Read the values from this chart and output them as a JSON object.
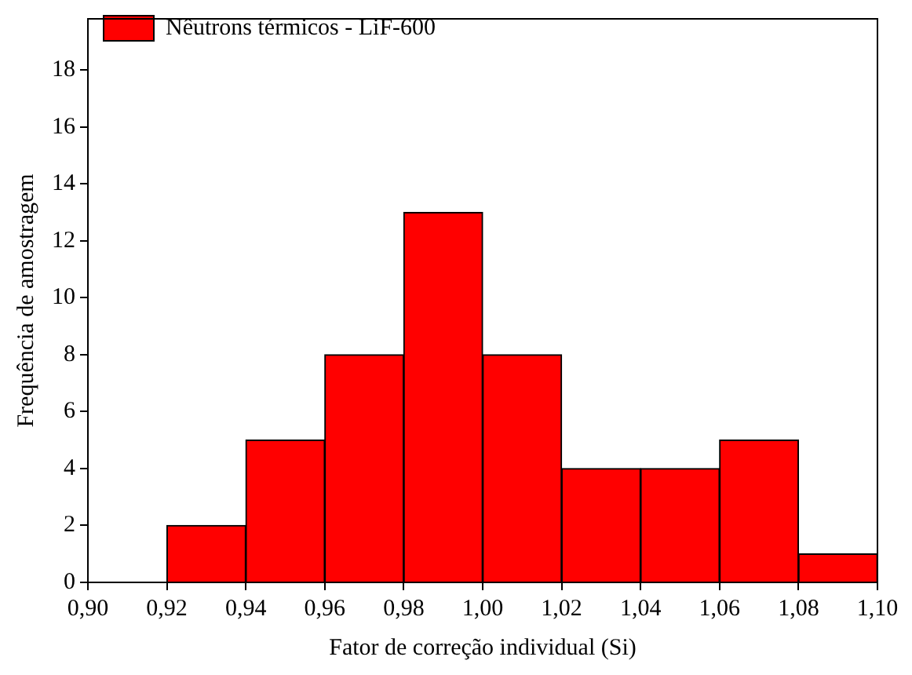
{
  "chart_data": {
    "type": "histogram",
    "xlabel": "Fator de correção individual (Si)",
    "ylabel": "Frequência de amostragem",
    "bins": [
      0.92,
      0.94,
      0.96,
      0.98,
      1.0,
      1.02,
      1.04,
      1.06,
      1.08,
      1.1
    ],
    "series": [
      {
        "name": "Nêutrons térmicos - LiF-600",
        "color": "#ff0000",
        "values": [
          2,
          5,
          8,
          13,
          8,
          4,
          4,
          5,
          1
        ]
      }
    ],
    "xlim": [
      0.9,
      1.1
    ],
    "xticks": [
      {
        "value": 0.9,
        "label": "0,90"
      },
      {
        "value": 0.92,
        "label": "0,92"
      },
      {
        "value": 0.94,
        "label": "0,94"
      },
      {
        "value": 0.96,
        "label": "0,96"
      },
      {
        "value": 0.98,
        "label": "0,98"
      },
      {
        "value": 1.0,
        "label": "1,00"
      },
      {
        "value": 1.02,
        "label": "1,02"
      },
      {
        "value": 1.04,
        "label": "1,04"
      },
      {
        "value": 1.06,
        "label": "1,06"
      },
      {
        "value": 1.08,
        "label": "1,08"
      },
      {
        "value": 1.1,
        "label": "1,10"
      }
    ],
    "ylim": [
      0,
      19.8
    ],
    "yticks": [
      0,
      2,
      4,
      6,
      8,
      10,
      12,
      14,
      16,
      18
    ],
    "grid": false,
    "legend": "top left"
  }
}
